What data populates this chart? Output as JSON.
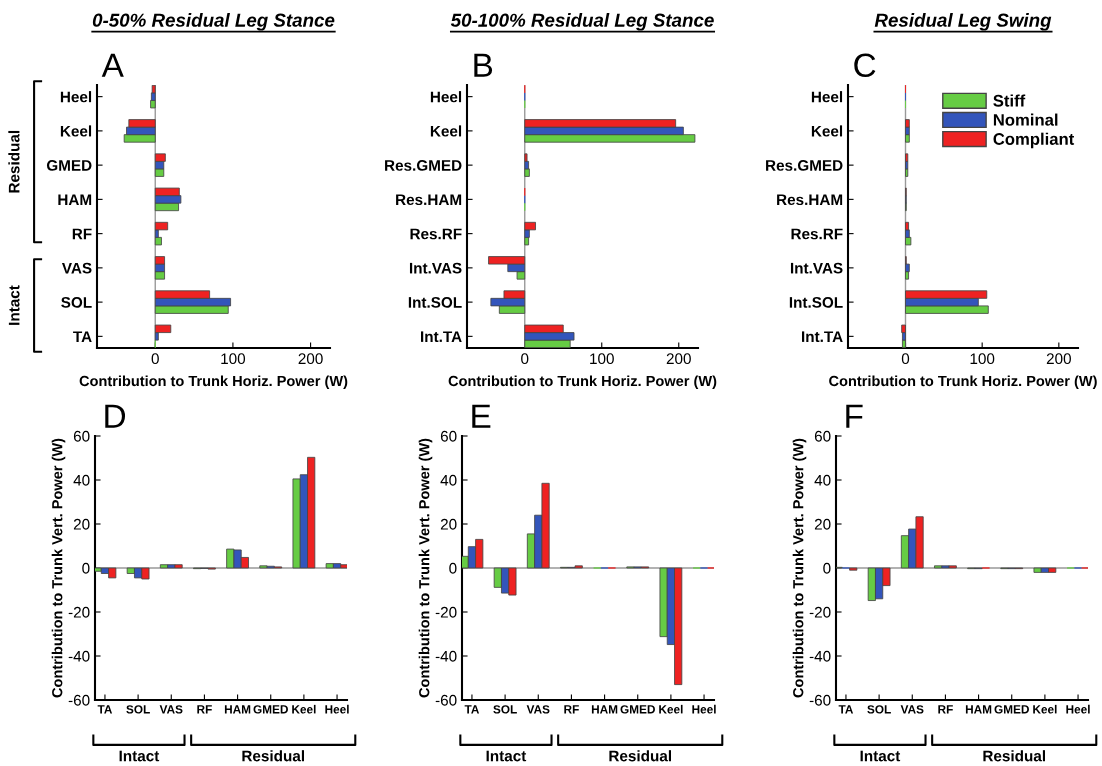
{
  "chart_data": [
    {
      "type": "bar",
      "orientation": "horizontal",
      "title": "0-50% Residual Leg Stance",
      "xlabel": "Contribution to Trunk Horiz. Power (W)",
      "annotations": [
        "A",
        "Residual",
        "Intact"
      ],
      "categories": [
        "Heel",
        "Keel",
        "GMED",
        "HAM",
        "RF",
        "VAS",
        "SOL",
        "TA"
      ],
      "xlim": [
        -75,
        225
      ],
      "xticks": [
        0,
        100,
        200
      ],
      "ref_lines": [
        {
          "axis": "x",
          "value": 0,
          "color": "#999999"
        }
      ],
      "series": [
        {
          "color": "#66cc44",
          "values": [
            -6,
            -40,
            11,
            30,
            8,
            12,
            94,
            0
          ]
        },
        {
          "color": "#3355bb",
          "values": [
            -5,
            -37,
            11,
            33,
            4,
            12,
            97,
            4
          ]
        },
        {
          "color": "#ee2222",
          "values": [
            -4,
            -34,
            13,
            31,
            16,
            12,
            70,
            20
          ]
        }
      ]
    },
    {
      "type": "bar",
      "orientation": "horizontal",
      "title": "50-100% Residual Leg Stance",
      "xlabel": "Contribution to Trunk Horiz. Power (W)",
      "annotations": [
        "B"
      ],
      "categories": [
        "Heel",
        "Keel",
        "Res.GMED",
        "Res.HAM",
        "Res.RF",
        "Int.VAS",
        "Int.SOL",
        "Int.TA"
      ],
      "xlim": [
        -75,
        225
      ],
      "xticks": [
        0,
        100,
        200
      ],
      "ref_lines": [
        {
          "axis": "x",
          "value": 0,
          "color": "#999999"
        }
      ],
      "series": [
        {
          "color": "#66cc44",
          "values": [
            0,
            221,
            6,
            0,
            5,
            -10,
            -33,
            59
          ]
        },
        {
          "color": "#3355bb",
          "values": [
            0,
            206,
            5,
            0,
            6,
            -22,
            -44,
            64
          ]
        },
        {
          "color": "#ee2222",
          "values": [
            0,
            196,
            3,
            0,
            14,
            -47,
            -27,
            50
          ]
        }
      ]
    },
    {
      "type": "bar",
      "orientation": "horizontal",
      "title": "Residual Leg Swing",
      "xlabel": "Contribution to Trunk Horiz. Power (W)",
      "annotations": [
        "C"
      ],
      "categories": [
        "Heel",
        "Keel",
        "Res.GMED",
        "Res.HAM",
        "Res.RF",
        "Int.VAS",
        "Int.SOL",
        "Int.TA"
      ],
      "xlim": [
        -75,
        225
      ],
      "xticks": [
        0,
        100,
        200
      ],
      "legend": "top right",
      "ref_lines": [
        {
          "axis": "x",
          "value": 0,
          "color": "#999999"
        }
      ],
      "series": [
        {
          "name": "Stiff",
          "color": "#66cc44",
          "values": [
            0,
            5,
            3,
            1,
            7,
            4,
            108,
            -4
          ]
        },
        {
          "name": "Nominal",
          "color": "#3355bb",
          "values": [
            0,
            5,
            3,
            1,
            5,
            5,
            95,
            -4
          ]
        },
        {
          "name": "Compliant",
          "color": "#ee2222",
          "values": [
            0,
            5,
            3,
            1,
            4,
            1,
            106,
            -5
          ]
        }
      ]
    },
    {
      "type": "bar",
      "ylabel": "Contribution to Trunk Vert. Power (W)",
      "annotations": [
        "D",
        "Intact",
        "Residual"
      ],
      "categories": [
        "TA",
        "SOL",
        "VAS",
        "RF",
        "HAM",
        "GMED",
        "Keel",
        "Heel"
      ],
      "ylim": [
        -60,
        60
      ],
      "yticks": [
        -60,
        -40,
        -20,
        0,
        20,
        40,
        60
      ],
      "ref_lines": [
        {
          "axis": "y",
          "value": 0,
          "color": "#999999"
        }
      ],
      "series": [
        {
          "color": "#66cc44",
          "values": [
            -1.5,
            -2.5,
            1.5,
            -0.3,
            8.6,
            1,
            40.5,
            2
          ]
        },
        {
          "color": "#3355bb",
          "values": [
            -2.5,
            -4.5,
            1.5,
            -0.2,
            8.2,
            0.8,
            42.4,
            2
          ]
        },
        {
          "color": "#ee2222",
          "values": [
            -4.5,
            -5,
            1.5,
            -0.5,
            4.8,
            0.5,
            50.3,
            1.5
          ]
        }
      ]
    },
    {
      "type": "bar",
      "ylabel": "Contribution to Trunk Vert. Power (W)",
      "annotations": [
        "E",
        "Intact",
        "Residual"
      ],
      "categories": [
        "TA",
        "SOL",
        "VAS",
        "RF",
        "HAM",
        "GMED",
        "Keel",
        "Heel"
      ],
      "ylim": [
        -60,
        60
      ],
      "yticks": [
        -60,
        -40,
        -20,
        0,
        20,
        40,
        60
      ],
      "ref_lines": [
        {
          "axis": "y",
          "value": 0,
          "color": "#999999"
        }
      ],
      "series": [
        {
          "color": "#66cc44",
          "values": [
            5.3,
            -8.8,
            15.5,
            0.3,
            0,
            0.5,
            -31.2,
            0
          ]
        },
        {
          "color": "#3355bb",
          "values": [
            9.7,
            -11.4,
            24,
            0.3,
            0,
            0.5,
            -34.8,
            0
          ]
        },
        {
          "color": "#ee2222",
          "values": [
            13,
            -12.3,
            38.5,
            1,
            0,
            0.5,
            -53,
            0
          ]
        }
      ]
    },
    {
      "type": "bar",
      "ylabel": "Contribution to Trunk Vert. Power (W)",
      "annotations": [
        "F",
        "Intact",
        "Residual"
      ],
      "categories": [
        "TA",
        "SOL",
        "VAS",
        "RF",
        "HAM",
        "GMED",
        "Keel",
        "Heel"
      ],
      "ylim": [
        -60,
        60
      ],
      "yticks": [
        -60,
        -40,
        -20,
        0,
        20,
        40,
        60
      ],
      "ref_lines": [
        {
          "axis": "y",
          "value": 0,
          "color": "#999999"
        }
      ],
      "series": [
        {
          "color": "#66cc44",
          "values": [
            0.3,
            -14.8,
            14.7,
            1,
            -0.3,
            -0.3,
            -2,
            0
          ]
        },
        {
          "color": "#3355bb",
          "values": [
            0,
            -14,
            17.7,
            1,
            -0.3,
            -0.3,
            -2,
            0
          ]
        },
        {
          "color": "#ee2222",
          "values": [
            -1,
            -8,
            23.3,
            1,
            0,
            -0.3,
            -2,
            0
          ]
        }
      ]
    }
  ]
}
